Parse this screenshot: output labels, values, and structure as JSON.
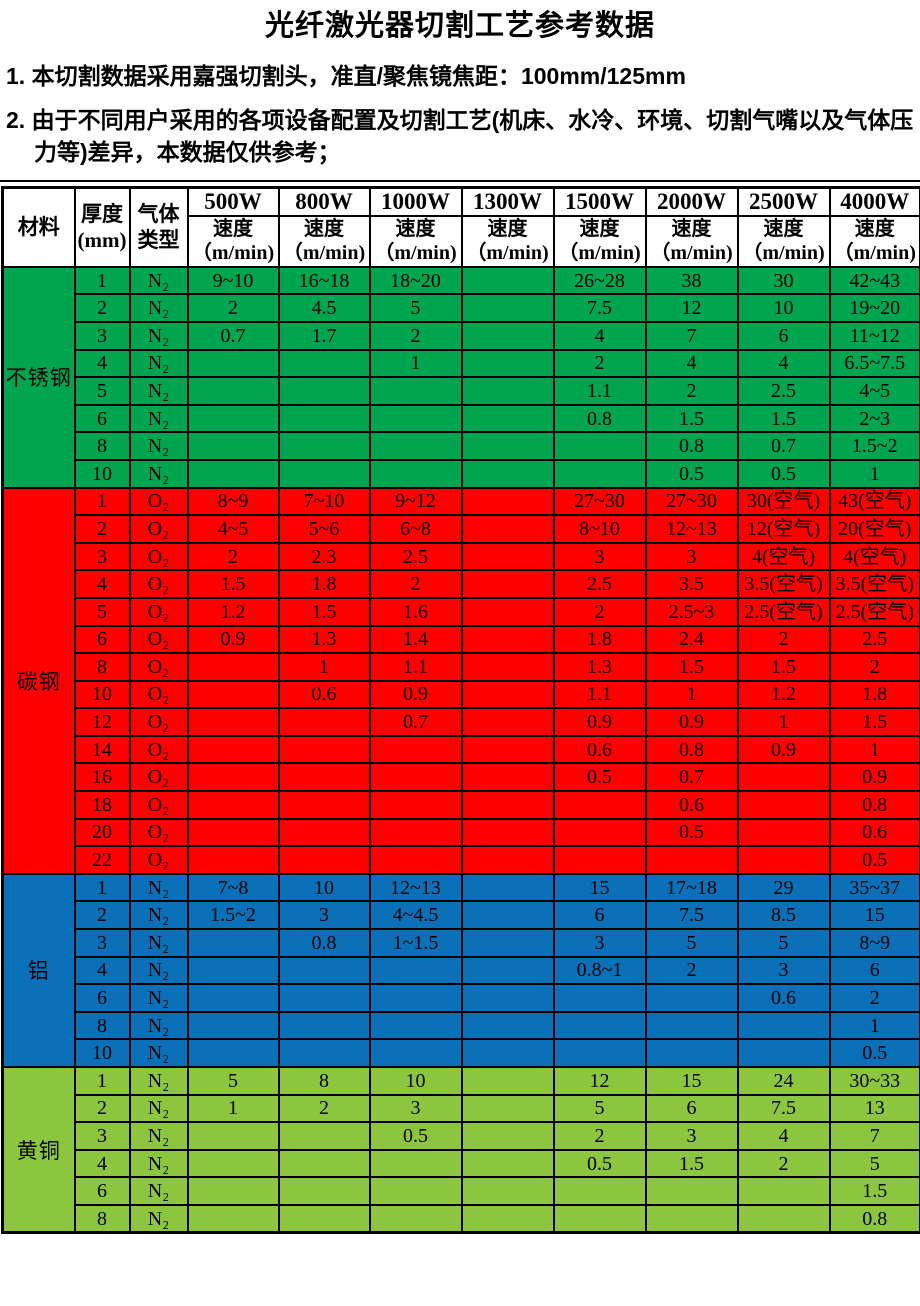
{
  "title": "光纤激光器切割工艺参考数据",
  "notes": [
    "1. 本切割数据采用嘉强切割头，准直/聚焦镜焦距：100mm/125mm",
    "2. 由于不同用户采用的各项设备配置及切割工艺(机床、水冷、环境、切割气嘴以及气体压力等)差异，本数据仅供参考；"
  ],
  "table": {
    "header": {
      "material": "材料",
      "thickness_line1": "厚度",
      "thickness_line2": "(mm)",
      "gas_line1": "气体",
      "gas_line2": "类型",
      "powers": [
        "500W",
        "800W",
        "1000W",
        "1300W",
        "1500W",
        "2000W",
        "2500W",
        "4000W"
      ],
      "speed_line1": "速度",
      "speed_line2": "（m/min)"
    },
    "sections": [
      {
        "material": "不锈钢",
        "color": "#00A64F",
        "rows": [
          {
            "t": "1",
            "gas": "N₂",
            "v": [
              "9~10",
              "16~18",
              "18~20",
              "",
              "26~28",
              "38",
              "30",
              "42~43"
            ]
          },
          {
            "t": "2",
            "gas": "N₂",
            "v": [
              "2",
              "4.5",
              "5",
              "",
              "7.5",
              "12",
              "10",
              "19~20"
            ]
          },
          {
            "t": "3",
            "gas": "N₂",
            "v": [
              "0.7",
              "1.7",
              "2",
              "",
              "4",
              "7",
              "6",
              "11~12"
            ]
          },
          {
            "t": "4",
            "gas": "N₂",
            "v": [
              "",
              "",
              "1",
              "",
              "2",
              "4",
              "4",
              "6.5~7.5"
            ]
          },
          {
            "t": "5",
            "gas": "N₂",
            "v": [
              "",
              "",
              "",
              "",
              "1.1",
              "2",
              "2.5",
              "4~5"
            ]
          },
          {
            "t": "6",
            "gas": "N₂",
            "v": [
              "",
              "",
              "",
              "",
              "0.8",
              "1.5",
              "1.5",
              "2~3"
            ]
          },
          {
            "t": "8",
            "gas": "N₂",
            "v": [
              "",
              "",
              "",
              "",
              "",
              "0.8",
              "0.7",
              "1.5~2"
            ]
          },
          {
            "t": "10",
            "gas": "N₂",
            "v": [
              "",
              "",
              "",
              "",
              "",
              "0.5",
              "0.5",
              "1"
            ]
          }
        ]
      },
      {
        "material": "碳钢",
        "color": "#FF0000",
        "rows": [
          {
            "t": "1",
            "gas": "O₂",
            "v": [
              "8~9",
              "7~10",
              "9~12",
              "",
              "27~30",
              "27~30",
              "30(空气)",
              "43(空气)"
            ]
          },
          {
            "t": "2",
            "gas": "O₂",
            "v": [
              "4~5",
              "5~6",
              "6~8",
              "",
              "8~10",
              "12~13",
              "12(空气)",
              "20(空气)"
            ]
          },
          {
            "t": "3",
            "gas": "O₂",
            "v": [
              "2",
              "2.3",
              "2.5",
              "",
              "3",
              "3",
              "4(空气)",
              "4(空气)"
            ]
          },
          {
            "t": "4",
            "gas": "O₂",
            "v": [
              "1.5",
              "1.8",
              "2",
              "",
              "2.5",
              "3.5",
              "3.5(空气)",
              "3.5(空气)"
            ]
          },
          {
            "t": "5",
            "gas": "O₂",
            "v": [
              "1.2",
              "1.5",
              "1.6",
              "",
              "2",
              "2.5~3",
              "2.5(空气)",
              "2.5(空气)"
            ]
          },
          {
            "t": "6",
            "gas": "O₂",
            "v": [
              "0.9",
              "1.3",
              "1.4",
              "",
              "1.8",
              "2.4",
              "2",
              "2.5"
            ]
          },
          {
            "t": "8",
            "gas": "O₂",
            "v": [
              "",
              "1",
              "1.1",
              "",
              "1.3",
              "1.5",
              "1.5",
              "2"
            ]
          },
          {
            "t": "10",
            "gas": "O₂",
            "v": [
              "",
              "0.6",
              "0.9",
              "",
              "1.1",
              "1",
              "1.2",
              "1.8"
            ]
          },
          {
            "t": "12",
            "gas": "O₂",
            "v": [
              "",
              "",
              "0.7",
              "",
              "0.9",
              "0.9",
              "1",
              "1.5"
            ]
          },
          {
            "t": "14",
            "gas": "O₂",
            "v": [
              "",
              "",
              "",
              "",
              "0.6",
              "0.8",
              "0.9",
              "1"
            ]
          },
          {
            "t": "16",
            "gas": "O₂",
            "v": [
              "",
              "",
              "",
              "",
              "0.5",
              "0.7",
              "",
              "0.9"
            ]
          },
          {
            "t": "18",
            "gas": "O₂",
            "v": [
              "",
              "",
              "",
              "",
              "",
              "0.6",
              "",
              "0.8"
            ]
          },
          {
            "t": "20",
            "gas": "O₂",
            "v": [
              "",
              "",
              "",
              "",
              "",
              "0.5",
              "",
              "0.6"
            ]
          },
          {
            "t": "22",
            "gas": "O₂",
            "v": [
              "",
              "",
              "",
              "",
              "",
              "",
              "",
              "0.5"
            ]
          }
        ]
      },
      {
        "material": "铝",
        "color": "#0A70B8",
        "rows": [
          {
            "t": "1",
            "gas": "N₂",
            "v": [
              "7~8",
              "10",
              "12~13",
              "",
              "15",
              "17~18",
              "29",
              "35~37"
            ]
          },
          {
            "t": "2",
            "gas": "N₂",
            "v": [
              "1.5~2",
              "3",
              "4~4.5",
              "",
              "6",
              "7.5",
              "8.5",
              "15"
            ]
          },
          {
            "t": "3",
            "gas": "N₂",
            "v": [
              "",
              "0.8",
              "1~1.5",
              "",
              "3",
              "5",
              "5",
              "8~9"
            ]
          },
          {
            "t": "4",
            "gas": "N₂",
            "v": [
              "",
              "",
              "",
              "",
              "0.8~1",
              "2",
              "3",
              "6"
            ]
          },
          {
            "t": "6",
            "gas": "N₂",
            "v": [
              "",
              "",
              "",
              "",
              "",
              "",
              "0.6",
              "2"
            ]
          },
          {
            "t": "8",
            "gas": "N₂",
            "v": [
              "",
              "",
              "",
              "",
              "",
              "",
              "",
              "1"
            ]
          },
          {
            "t": "10",
            "gas": "N₂",
            "v": [
              "",
              "",
              "",
              "",
              "",
              "",
              "",
              "0.5"
            ]
          }
        ]
      },
      {
        "material": "黄铜",
        "color": "#8CC63F",
        "rows": [
          {
            "t": "1",
            "gas": "N₂",
            "v": [
              "5",
              "8",
              "10",
              "",
              "12",
              "15",
              "24",
              "30~33"
            ]
          },
          {
            "t": "2",
            "gas": "N₂",
            "v": [
              "1",
              "2",
              "3",
              "",
              "5",
              "6",
              "7.5",
              "13"
            ]
          },
          {
            "t": "3",
            "gas": "N₂",
            "v": [
              "",
              "",
              "0.5",
              "",
              "2",
              "3",
              "4",
              "7"
            ]
          },
          {
            "t": "4",
            "gas": "N₂",
            "v": [
              "",
              "",
              "",
              "",
              "0.5",
              "1.5",
              "2",
              "5"
            ]
          },
          {
            "t": "6",
            "gas": "N₂",
            "v": [
              "",
              "",
              "",
              "",
              "",
              "",
              "",
              "1.5"
            ]
          },
          {
            "t": "8",
            "gas": "N₂",
            "v": [
              "",
              "",
              "",
              "",
              "",
              "",
              "",
              "0.8"
            ]
          }
        ]
      }
    ]
  }
}
